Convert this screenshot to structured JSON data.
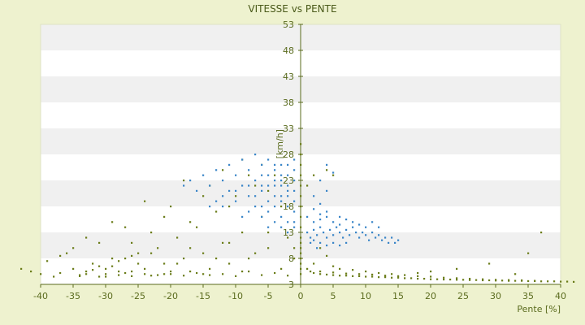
{
  "chart_data": {
    "type": "scatter",
    "title": "VITESSE vs PENTE",
    "xlabel": "Pente [%]",
    "ylabel": "[km/h]",
    "xlim": [
      -40,
      40
    ],
    "ylim": [
      3,
      53
    ],
    "xticks": [
      -40,
      -35,
      -30,
      -25,
      -20,
      -15,
      -10,
      -5,
      0,
      5,
      10,
      15,
      20,
      25,
      30,
      35,
      40
    ],
    "yticks": [
      3,
      8,
      13,
      18,
      23,
      28,
      33,
      38,
      43,
      48,
      53
    ],
    "grid": "horizontal-bands",
    "series": [
      {
        "color": "#6b7d1a",
        "points": [
          [
            -43,
            6
          ],
          [
            -41.5,
            5.5
          ],
          [
            -40,
            5
          ],
          [
            -38,
            4.5
          ],
          [
            -37,
            5.2
          ],
          [
            -35,
            6
          ],
          [
            -34,
            4.8
          ],
          [
            -33,
            5.5
          ],
          [
            -32,
            7
          ],
          [
            -31,
            4.5
          ],
          [
            -30,
            5
          ],
          [
            -29,
            6.5
          ],
          [
            -28,
            4.8
          ],
          [
            -27,
            8
          ],
          [
            -26,
            5.5
          ],
          [
            -25,
            9
          ],
          [
            -24,
            6
          ],
          [
            -23,
            4.7
          ],
          [
            -22,
            10
          ],
          [
            -21,
            7
          ],
          [
            -20,
            5
          ],
          [
            -19,
            12
          ],
          [
            -18,
            8
          ],
          [
            -17,
            5.5
          ],
          [
            -16,
            14
          ],
          [
            -15,
            9
          ],
          [
            -14,
            6
          ],
          [
            -13,
            17
          ],
          [
            -12,
            11
          ],
          [
            -11,
            7
          ],
          [
            -10,
            20
          ],
          [
            -9,
            13
          ],
          [
            -8,
            8
          ],
          [
            -7,
            22
          ],
          [
            -6,
            16
          ],
          [
            -5,
            10
          ],
          [
            -4,
            24
          ],
          [
            -3,
            18
          ],
          [
            -2,
            12
          ],
          [
            -1,
            8
          ],
          [
            -36,
            9
          ],
          [
            -31,
            11
          ],
          [
            -27,
            14
          ],
          [
            -24,
            19
          ],
          [
            -21,
            16
          ],
          [
            -18,
            23
          ],
          [
            -15,
            20
          ],
          [
            -12,
            25
          ],
          [
            -9,
            27
          ],
          [
            -6,
            26
          ],
          [
            -33,
            12
          ],
          [
            -29,
            15
          ],
          [
            -26,
            11
          ],
          [
            -23,
            13
          ],
          [
            -20,
            18
          ],
          [
            -17,
            15
          ],
          [
            -14,
            22
          ],
          [
            -11,
            18
          ],
          [
            -8,
            24
          ],
          [
            -5,
            21
          ],
          [
            -39,
            7.5
          ],
          [
            -37,
            8.5
          ],
          [
            -35,
            10
          ],
          [
            -33,
            5
          ],
          [
            -31,
            6.5
          ],
          [
            -29,
            8
          ],
          [
            -27,
            5.2
          ],
          [
            -25,
            7
          ],
          [
            -23,
            9
          ],
          [
            -21,
            5
          ],
          [
            -19,
            7
          ],
          [
            -17,
            10
          ],
          [
            -15,
            5
          ],
          [
            -13,
            8
          ],
          [
            -11,
            11
          ],
          [
            -9,
            5.5
          ],
          [
            -7,
            9
          ],
          [
            -5,
            13
          ],
          [
            -3,
            6
          ],
          [
            -1,
            10
          ],
          [
            -30,
            4.5
          ],
          [
            -28,
            5.5
          ],
          [
            -26,
            4.6
          ],
          [
            -24,
            5
          ],
          [
            -22,
            4.8
          ],
          [
            -20,
            5.5
          ],
          [
            -18,
            4.7
          ],
          [
            -16,
            5.2
          ],
          [
            -14,
            4.8
          ],
          [
            -12,
            5
          ],
          [
            -10,
            4.6
          ],
          [
            -8,
            5.5
          ],
          [
            -6,
            4.8
          ],
          [
            -4,
            5.2
          ],
          [
            -2,
            4.7
          ],
          [
            -34,
            4.6
          ],
          [
            -32,
            5.8
          ],
          [
            -30,
            6
          ],
          [
            -28,
            7.5
          ],
          [
            -26,
            8.5
          ],
          [
            0,
            5
          ],
          [
            0,
            6
          ],
          [
            0,
            7
          ],
          [
            0,
            8
          ],
          [
            0,
            9
          ],
          [
            0,
            10
          ],
          [
            0,
            11
          ],
          [
            0,
            12
          ],
          [
            0,
            14
          ],
          [
            0,
            16
          ],
          [
            0,
            18
          ],
          [
            0,
            20
          ],
          [
            0,
            22
          ],
          [
            0,
            24
          ],
          [
            0,
            26
          ],
          [
            0,
            28
          ],
          [
            0,
            30
          ],
          [
            1,
            6
          ],
          [
            1.5,
            5.5
          ],
          [
            2,
            5.2
          ],
          [
            3,
            5
          ],
          [
            4,
            4.9
          ],
          [
            5,
            4.8
          ],
          [
            6,
            4.7
          ],
          [
            7,
            4.7
          ],
          [
            8,
            4.6
          ],
          [
            9,
            4.6
          ],
          [
            10,
            4.5
          ],
          [
            11,
            4.5
          ],
          [
            12,
            4.4
          ],
          [
            13,
            4.4
          ],
          [
            14,
            4.3
          ],
          [
            15,
            4.3
          ],
          [
            16,
            4.2
          ],
          [
            17,
            4.2
          ],
          [
            18,
            4.1
          ],
          [
            19,
            4.1
          ],
          [
            20,
            4.0
          ],
          [
            21,
            4.0
          ],
          [
            22,
            3.95
          ],
          [
            23,
            3.95
          ],
          [
            24,
            3.9
          ],
          [
            25,
            3.9
          ],
          [
            26,
            3.85
          ],
          [
            27,
            3.85
          ],
          [
            28,
            3.8
          ],
          [
            29,
            3.8
          ],
          [
            30,
            3.75
          ],
          [
            31,
            3.75
          ],
          [
            32,
            3.7
          ],
          [
            33,
            3.7
          ],
          [
            34,
            3.7
          ],
          [
            35,
            3.65
          ],
          [
            36,
            3.65
          ],
          [
            37,
            3.6
          ],
          [
            38,
            3.6
          ],
          [
            39,
            3.6
          ],
          [
            40,
            3.55
          ],
          [
            41,
            3.55
          ],
          [
            42,
            3.5
          ],
          [
            3,
            5.5
          ],
          [
            5,
            5.3
          ],
          [
            7,
            5.1
          ],
          [
            9,
            5
          ],
          [
            11,
            4.9
          ],
          [
            13,
            4.7
          ],
          [
            15,
            4.6
          ],
          [
            2,
            7
          ],
          [
            4,
            8.5
          ],
          [
            3,
            10
          ],
          [
            5,
            6.5
          ],
          [
            6,
            6
          ],
          [
            8,
            5.8
          ],
          [
            10,
            5.5
          ],
          [
            12,
            5.2
          ],
          [
            14,
            5
          ],
          [
            16,
            4.8
          ],
          [
            18,
            4.6
          ],
          [
            20,
            4.5
          ],
          [
            22,
            4.3
          ],
          [
            24,
            4.2
          ],
          [
            26,
            4.1
          ],
          [
            28,
            4.0
          ],
          [
            30,
            3.9
          ],
          [
            32,
            3.85
          ],
          [
            34,
            3.8
          ],
          [
            36,
            3.7
          ],
          [
            35,
            9
          ],
          [
            37,
            13
          ],
          [
            29,
            7
          ],
          [
            33,
            5
          ],
          [
            24,
            6
          ],
          [
            20,
            5.5
          ],
          [
            18,
            5.2
          ],
          [
            1,
            22
          ],
          [
            2,
            24
          ],
          [
            4,
            25
          ],
          [
            5,
            24
          ]
        ]
      },
      {
        "color": "#3a86c8",
        "points": [
          [
            -18,
            22
          ],
          [
            -17,
            23
          ],
          [
            -16,
            21
          ],
          [
            -15,
            24
          ],
          [
            -14,
            22
          ],
          [
            -13,
            25
          ],
          [
            -12,
            23
          ],
          [
            -11,
            26
          ],
          [
            -10,
            24
          ],
          [
            -9,
            27
          ],
          [
            -8,
            25
          ],
          [
            -7,
            28
          ],
          [
            -6,
            26
          ],
          [
            -5,
            27
          ],
          [
            -4,
            25
          ],
          [
            -3,
            26
          ],
          [
            -2,
            24
          ],
          [
            -1,
            25
          ],
          [
            -1,
            23
          ],
          [
            -2,
            21
          ],
          [
            -14,
            18
          ],
          [
            -13,
            19
          ],
          [
            -12,
            20
          ],
          [
            -11,
            21
          ],
          [
            -10,
            19
          ],
          [
            -9,
            22
          ],
          [
            -8,
            20
          ],
          [
            -7,
            23
          ],
          [
            -6,
            21
          ],
          [
            -5,
            24
          ],
          [
            -4,
            22
          ],
          [
            -3,
            23
          ],
          [
            -2,
            20
          ],
          [
            -1,
            21
          ],
          [
            -1,
            19
          ],
          [
            -2,
            18
          ],
          [
            -3,
            19
          ],
          [
            -4,
            20
          ],
          [
            -5,
            19
          ],
          [
            -6,
            18
          ],
          [
            -9,
            16
          ],
          [
            -8,
            17
          ],
          [
            -7,
            18
          ],
          [
            -6,
            16
          ],
          [
            -5,
            17
          ],
          [
            -4,
            18
          ],
          [
            -3,
            16
          ],
          [
            -2,
            15
          ],
          [
            -1,
            17
          ],
          [
            -1,
            15
          ],
          [
            -5,
            14
          ],
          [
            -4,
            15
          ],
          [
            -3,
            14
          ],
          [
            -2,
            13
          ],
          [
            -1,
            14
          ],
          [
            -3,
            20
          ],
          [
            -2,
            22
          ],
          [
            -4,
            23
          ],
          [
            -6,
            24
          ],
          [
            -8,
            22
          ],
          [
            -10,
            21
          ],
          [
            -12,
            18
          ],
          [
            -7,
            20
          ],
          [
            -5,
            22
          ],
          [
            -3,
            24
          ],
          [
            -2,
            26
          ],
          [
            -1,
            27
          ],
          [
            -6,
            22
          ],
          [
            -4,
            26
          ],
          [
            -3,
            22
          ],
          [
            1,
            13
          ],
          [
            1.5,
            12
          ],
          [
            2,
            13.5
          ],
          [
            2.5,
            12.5
          ],
          [
            3,
            14
          ],
          [
            3.5,
            13
          ],
          [
            4,
            12
          ],
          [
            4.5,
            13.5
          ],
          [
            5,
            12.5
          ],
          [
            5.5,
            14
          ],
          [
            6,
            13
          ],
          [
            6.5,
            12
          ],
          [
            7,
            13.5
          ],
          [
            7.5,
            12.5
          ],
          [
            8,
            14
          ],
          [
            8.5,
            13
          ],
          [
            9,
            12
          ],
          [
            9.5,
            13
          ],
          [
            10,
            12.5
          ],
          [
            10.5,
            11.5
          ],
          [
            11,
            13
          ],
          [
            11.5,
            12
          ],
          [
            12,
            12.5
          ],
          [
            12.5,
            11.5
          ],
          [
            13,
            12
          ],
          [
            13.5,
            11
          ],
          [
            14,
            12
          ],
          [
            14.5,
            11
          ],
          [
            15,
            11.5
          ],
          [
            2,
            15
          ],
          [
            3,
            15.5
          ],
          [
            4,
            16
          ],
          [
            5,
            15
          ],
          [
            6,
            14.5
          ],
          [
            3,
            11
          ],
          [
            4,
            10.5
          ],
          [
            5,
            11
          ],
          [
            6,
            10.5
          ],
          [
            7,
            11
          ],
          [
            2,
            11.5
          ],
          [
            8,
            15
          ],
          [
            9,
            14.5
          ],
          [
            10,
            14
          ],
          [
            11,
            15
          ],
          [
            12,
            14
          ],
          [
            3,
            16.5
          ],
          [
            4,
            17
          ],
          [
            2,
            17.5
          ],
          [
            1,
            16
          ],
          [
            4,
            26
          ],
          [
            5,
            24.5
          ],
          [
            3,
            23
          ],
          [
            4,
            21
          ],
          [
            2,
            20
          ],
          [
            3,
            18.5
          ],
          [
            1.5,
            11
          ],
          [
            2.5,
            10
          ],
          [
            7,
            15.5
          ],
          [
            6,
            16
          ]
        ]
      }
    ]
  }
}
